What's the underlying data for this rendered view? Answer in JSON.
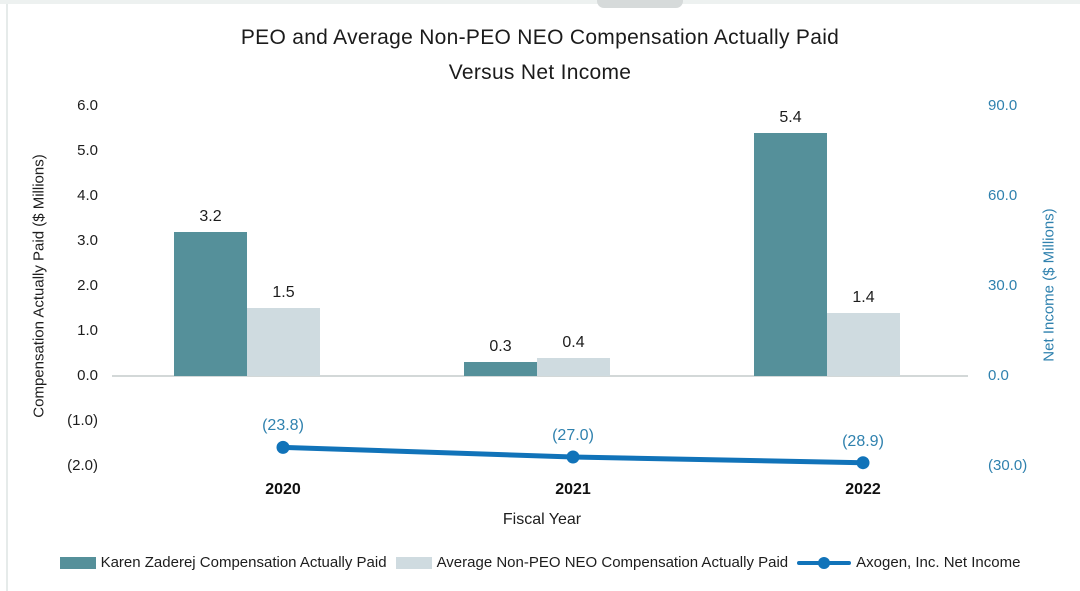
{
  "chart_data": {
    "type": "combo-bar-line",
    "title_lines": [
      "PEO and Average Non-PEO NEO Compensation Actually Paid",
      "Versus Net Income"
    ],
    "categories": [
      "2020",
      "2021",
      "2022"
    ],
    "series": [
      {
        "name": "Karen Zaderej Compensation Actually Paid",
        "type": "bar",
        "axis": "left",
        "color": "#55909a",
        "values": [
          3.2,
          0.3,
          5.4
        ],
        "value_labels": [
          "3.2",
          "0.3",
          "5.4"
        ]
      },
      {
        "name": "Average Non-PEO NEO Compensation Actually Paid",
        "type": "bar",
        "axis": "left",
        "color": "#cfdbe0",
        "values": [
          1.5,
          0.4,
          1.4
        ],
        "value_labels": [
          "1.5",
          "0.4",
          "1.4"
        ]
      },
      {
        "name": "Axogen, Inc. Net Income",
        "type": "line",
        "axis": "right",
        "color": "#1173b9",
        "label_color": "#2f81ae",
        "values": [
          -23.8,
          -27.0,
          -28.9
        ],
        "value_labels": [
          "(23.8)",
          "(27.0)",
          "(28.9)"
        ]
      }
    ],
    "left_axis": {
      "label": "Compensation Actually Paid ($ Millions)",
      "color": "#1d1d1d",
      "range": [
        -2,
        6
      ],
      "ticks": [
        {
          "value": 6,
          "label": "6.0"
        },
        {
          "value": 5,
          "label": "5.0"
        },
        {
          "value": 4,
          "label": "4.0"
        },
        {
          "value": 3,
          "label": "3.0"
        },
        {
          "value": 2,
          "label": "2.0"
        },
        {
          "value": 1,
          "label": "1.0"
        },
        {
          "value": 0,
          "label": "0.0"
        },
        {
          "value": -1,
          "label": "(1.0)"
        },
        {
          "value": -2,
          "label": "(2.0)"
        }
      ]
    },
    "right_axis": {
      "label": "Net Income ($ Millions)",
      "color": "#2f81ae",
      "range": [
        -30,
        90
      ],
      "ticks": [
        {
          "value": 90,
          "label": "90.0"
        },
        {
          "value": 60,
          "label": "60.0"
        },
        {
          "value": 30,
          "label": "30.0"
        },
        {
          "value": 0,
          "label": "0.0"
        },
        {
          "value": -30,
          "label": "(30.0)"
        }
      ]
    },
    "x_axis": {
      "label": "Fiscal Year"
    },
    "legend_position": "bottom",
    "grid": "zero-baseline-only"
  }
}
